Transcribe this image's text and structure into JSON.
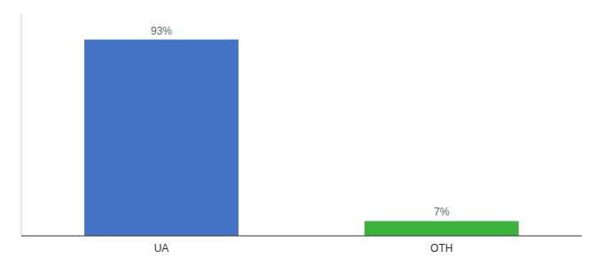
{
  "chart_data": {
    "type": "bar",
    "categories": [
      "UA",
      "OTH"
    ],
    "values": [
      93,
      7
    ],
    "value_labels": [
      "93%",
      "7%"
    ],
    "colors": [
      "#4472c4",
      "#3db33d"
    ],
    "ylim": [
      0,
      105
    ],
    "data_labels": true,
    "tick_labels": "x",
    "grid": false
  }
}
